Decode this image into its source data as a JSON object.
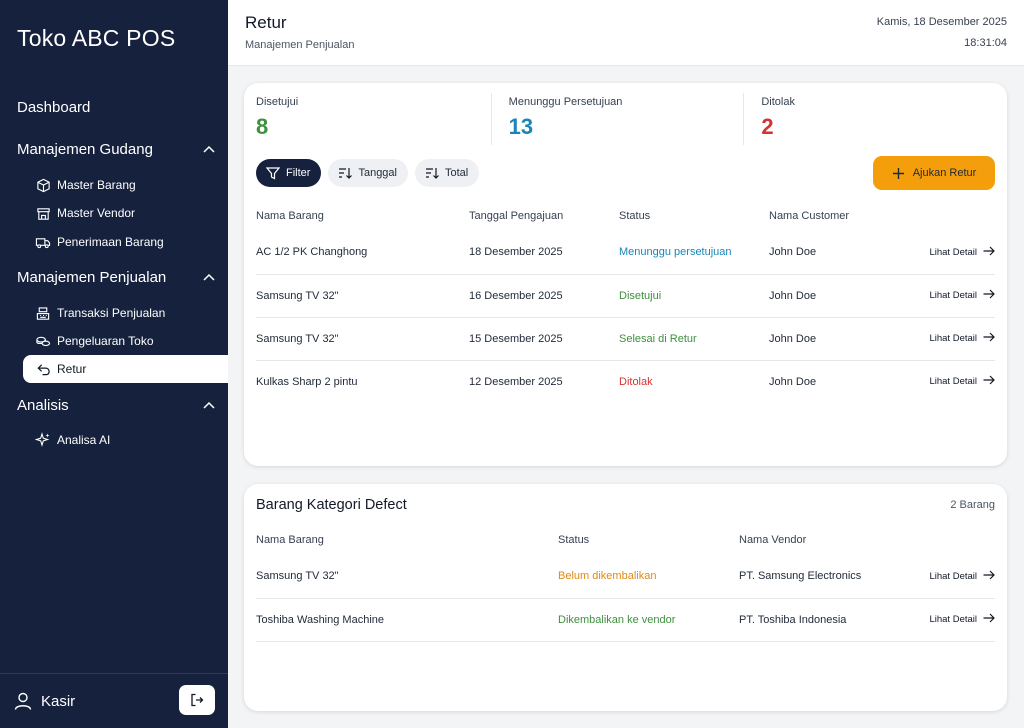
{
  "app": {
    "brand": "Toko ABC POS"
  },
  "sidebar": {
    "dashboard": "Dashboard",
    "sections": [
      {
        "label": "Manajemen Gudang",
        "items": [
          "Master Barang",
          "Master Vendor",
          "Penerimaan Barang"
        ]
      },
      {
        "label": "Manajemen Penjualan",
        "items": [
          "Transaksi Penjualan",
          "Pengeluaran Toko",
          "Retur"
        ]
      },
      {
        "label": "Analisis",
        "items": [
          "Analisa AI"
        ]
      }
    ],
    "active_item": "Retur",
    "user": "Kasir"
  },
  "header": {
    "title": "Retur",
    "subtitle": "Manajemen Penjualan",
    "date": "Kamis, 18 Desember 2025",
    "time": "18:31:04"
  },
  "stats": [
    {
      "label": "Disetujui",
      "value": "8",
      "color": "#3f8f3f"
    },
    {
      "label": "Menunggu Persetujuan",
      "value": "13",
      "color": "#1a86b8"
    },
    {
      "label": "Ditolak",
      "value": "2",
      "color": "#d23434"
    }
  ],
  "toolbar": {
    "filter": "Filter",
    "sort_date": "Tanggal",
    "sort_total": "Total",
    "add": "Ajukan Retur"
  },
  "returns_table": {
    "headers": [
      "Nama Barang",
      "Tanggal Pengajuan",
      "Status",
      "Nama Customer"
    ],
    "rows": [
      {
        "item": "AC 1/2 PK Changhong",
        "date": "18 Desember 2025",
        "status": "Menunggu persetujuan",
        "customer": "John Doe",
        "action": "Lihat Detail"
      },
      {
        "item": "Samsung TV 32\"",
        "date": "16 Desember 2025",
        "status": "Disetujui",
        "customer": "John Doe",
        "action": "Lihat Detail"
      },
      {
        "item": "Samsung TV 32\"",
        "date": "15 Desember 2025",
        "status": "Selesai di Retur",
        "customer": "John Doe",
        "action": "Lihat Detail"
      },
      {
        "item": "Kulkas Sharp 2 pintu",
        "date": "12 Desember 2025",
        "status": "Ditolak",
        "customer": "John Doe",
        "action": "Lihat Detail"
      }
    ]
  },
  "defect": {
    "title": "Barang Kategori Defect",
    "count": "2 Barang",
    "headers": [
      "Nama Barang",
      "Status",
      "Nama Vendor"
    ],
    "rows": [
      {
        "item": "Samsung TV 32\"",
        "status": "Belum dikembalikan",
        "vendor": "PT. Samsung Electronics",
        "action": "Lihat Detail"
      },
      {
        "item": "Toshiba Washing Machine",
        "status": "Dikembalikan ke vendor",
        "vendor": "PT. Toshiba Indonesia",
        "action": "Lihat Detail"
      }
    ]
  }
}
